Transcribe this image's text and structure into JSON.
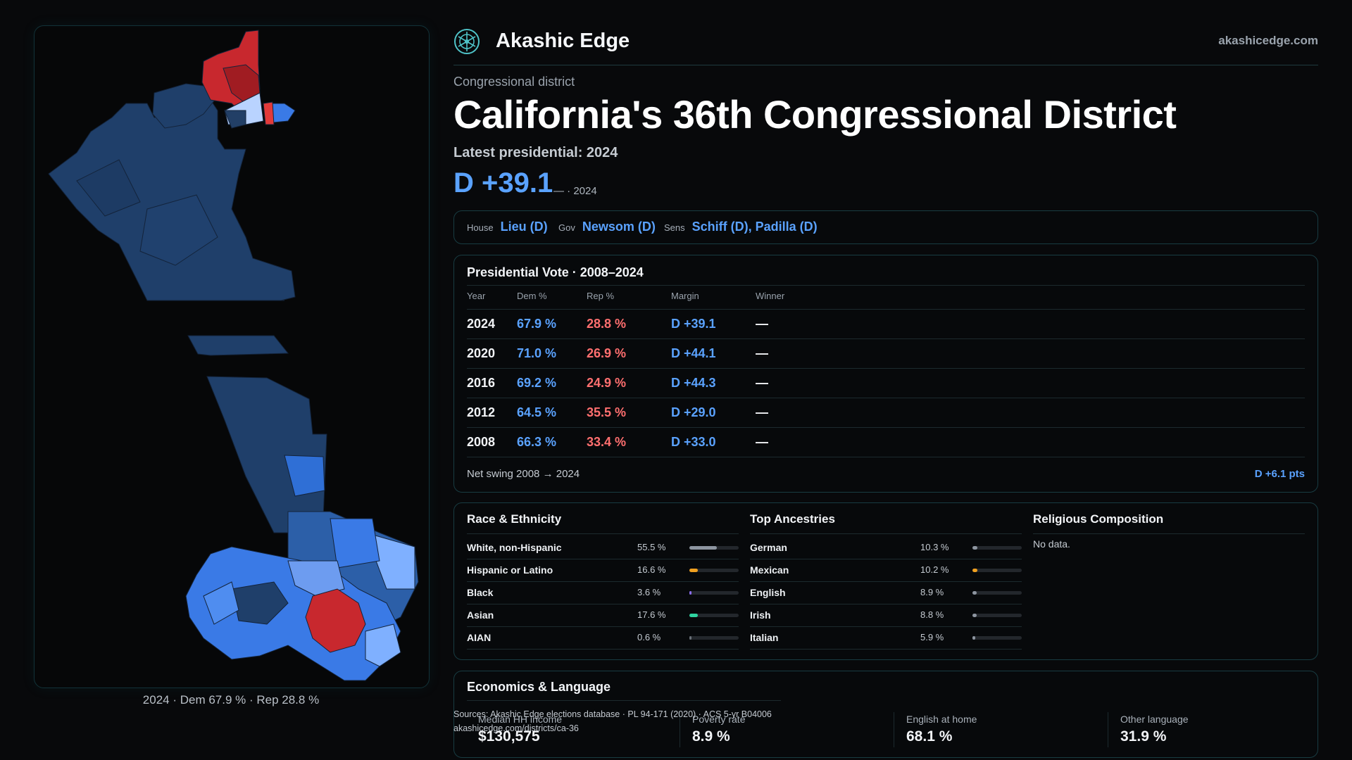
{
  "header": {
    "brand": "Akashic Edge",
    "site": "akashicedge.com",
    "logo_icon": "akashic-edge-logo-icon"
  },
  "district": {
    "eyebrow": "Congressional district",
    "title": "California's 36th Congressional District",
    "latest_label": "Latest presidential: 2024",
    "margin": "D +39.1",
    "margin_sub": "— · 2024"
  },
  "officials": [
    {
      "key": "House",
      "value": "Lieu (D)"
    },
    {
      "key": "Gov",
      "value": "Newsom (D)"
    },
    {
      "key": "Sens",
      "value": "Schiff (D), Padilla (D)"
    }
  ],
  "presidential": {
    "title": "Presidential Vote · 2008–2024",
    "columns": [
      "Year",
      "Dem %",
      "Rep %",
      "Margin",
      "Winner"
    ],
    "rows": [
      {
        "year": "2024",
        "dem": "67.9 %",
        "rep": "28.8 %",
        "margin": "D +39.1",
        "winner": "—"
      },
      {
        "year": "2020",
        "dem": "71.0 %",
        "rep": "26.9 %",
        "margin": "D +44.1",
        "winner": "—"
      },
      {
        "year": "2016",
        "dem": "69.2 %",
        "rep": "24.9 %",
        "margin": "D +44.3",
        "winner": "—"
      },
      {
        "year": "2012",
        "dem": "64.5 %",
        "rep": "35.5 %",
        "margin": "D +29.0",
        "winner": "—"
      },
      {
        "year": "2008",
        "dem": "66.3 %",
        "rep": "33.4 %",
        "margin": "D +33.0",
        "winner": "—"
      }
    ],
    "swing_label": "Net swing 2008 → 2024",
    "swing_value": "D +6.1 pts"
  },
  "race": {
    "title": "Race & Ethnicity",
    "rows": [
      {
        "name": "White, non-Hispanic",
        "pct": "55.5 %",
        "share": 0.555,
        "color": "#8d95a0"
      },
      {
        "name": "Hispanic or Latino",
        "pct": "16.6 %",
        "share": 0.166,
        "color": "#f0a020"
      },
      {
        "name": "Black",
        "pct": "3.6 %",
        "share": 0.036,
        "color": "#8a6cf0"
      },
      {
        "name": "Asian",
        "pct": "17.6 %",
        "share": 0.176,
        "color": "#2fd3a0"
      },
      {
        "name": "AIAN",
        "pct": "0.6 %",
        "share": 0.006,
        "color": "#6a7078"
      }
    ]
  },
  "ancestry": {
    "title": "Top Ancestries",
    "rows": [
      {
        "name": "German",
        "pct": "10.3 %",
        "share": 0.103,
        "color": "#8d95a0"
      },
      {
        "name": "Mexican",
        "pct": "10.2 %",
        "share": 0.102,
        "color": "#f0a020"
      },
      {
        "name": "English",
        "pct": "8.9 %",
        "share": 0.089,
        "color": "#8d95a0"
      },
      {
        "name": "Irish",
        "pct": "8.8 %",
        "share": 0.088,
        "color": "#8d95a0"
      },
      {
        "name": "Italian",
        "pct": "5.9 %",
        "share": 0.059,
        "color": "#8d95a0"
      }
    ]
  },
  "religion": {
    "title": "Religious Composition",
    "note": "No data."
  },
  "economics": {
    "title": "Economics & Language",
    "stats": [
      {
        "label": "Median HH income",
        "value": "$130,575"
      },
      {
        "label": "Poverty rate",
        "value": "8.9 %"
      },
      {
        "label": "English at home",
        "value": "68.1 %"
      },
      {
        "label": "Other language",
        "value": "31.9 %"
      }
    ]
  },
  "sources": {
    "line1": "Sources: Akashic Edge elections database · PL 94-171 (2020) · ACS 5-yr B04006",
    "line2": "akashicedge.com/districts/ca-36"
  },
  "map": {
    "caption": "2024 · Dem 67.9 % · Rep 28.8 %",
    "colors": {
      "dem_dark": "#1f3f6a",
      "dem_mid": "#3a7ae6",
      "dem_light": "#7fb0ff",
      "rep": "#c8282e",
      "rep_dark": "#a01c22"
    }
  }
}
